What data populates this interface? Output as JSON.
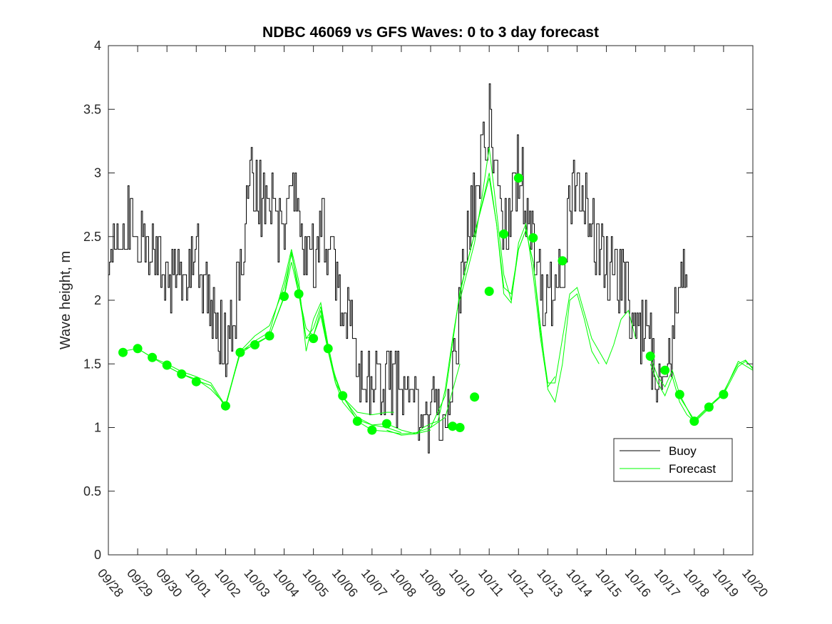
{
  "chart_data": {
    "type": "line",
    "title": "NDBC 46069 vs GFS Waves: 0 to 3 day forecast",
    "xlabel": "",
    "ylabel": "Wave height, m",
    "xlim": [
      0,
      22
    ],
    "ylim": [
      0,
      4
    ],
    "x_tick_labels": [
      "09/28",
      "09/29",
      "09/30",
      "10/01",
      "10/02",
      "10/03",
      "10/04",
      "10/05",
      "10/06",
      "10/07",
      "10/08",
      "10/09",
      "10/10",
      "10/11",
      "10/12",
      "10/13",
      "10/14",
      "10/15",
      "10/16",
      "10/17",
      "10/18",
      "10/19",
      "10/20"
    ],
    "y_ticks": [
      0,
      0.5,
      1,
      1.5,
      2,
      2.5,
      3,
      3.5,
      4
    ],
    "y_tick_labels": [
      "0",
      "0.5",
      "1",
      "1.5",
      "2",
      "2.5",
      "3",
      "3.5",
      "4"
    ],
    "legend": {
      "position": "lower-right",
      "entries": [
        "Buoy",
        "Forecast"
      ]
    },
    "colors": {
      "buoy": "#000000",
      "forecast": "#00ff00"
    },
    "buoy_anchors": [
      [
        0.0,
        2.1
      ],
      [
        0.1,
        2.6
      ],
      [
        0.25,
        2.45
      ],
      [
        0.5,
        2.6
      ],
      [
        0.75,
        2.6
      ],
      [
        1.0,
        2.4
      ],
      [
        1.25,
        2.5
      ],
      [
        1.5,
        2.4
      ],
      [
        1.75,
        2.3
      ],
      [
        2.0,
        2.2
      ],
      [
        2.25,
        2.15
      ],
      [
        2.5,
        2.2
      ],
      [
        2.75,
        2.3
      ],
      [
        3.0,
        2.3
      ],
      [
        3.25,
        2.2
      ],
      [
        3.5,
        2.05
      ],
      [
        3.75,
        1.7
      ],
      [
        4.0,
        1.65
      ],
      [
        4.25,
        1.8
      ],
      [
        4.5,
        2.2
      ],
      [
        4.75,
        3.0
      ],
      [
        5.0,
        2.9
      ],
      [
        5.25,
        2.8
      ],
      [
        5.5,
        2.95
      ],
      [
        5.75,
        2.6
      ],
      [
        6.0,
        2.45
      ],
      [
        6.25,
        2.9
      ],
      [
        6.5,
        2.6
      ],
      [
        6.75,
        2.3
      ],
      [
        7.0,
        2.35
      ],
      [
        7.25,
        2.55
      ],
      [
        7.5,
        2.45
      ],
      [
        7.75,
        2.2
      ],
      [
        8.0,
        2.0
      ],
      [
        8.25,
        1.75
      ],
      [
        8.5,
        1.55
      ],
      [
        8.75,
        1.4
      ],
      [
        9.0,
        1.45
      ],
      [
        9.25,
        1.35
      ],
      [
        9.5,
        1.4
      ],
      [
        9.75,
        1.3
      ],
      [
        10.0,
        1.25
      ],
      [
        10.25,
        1.2
      ],
      [
        10.5,
        1.15
      ],
      [
        10.75,
        1.1
      ],
      [
        11.0,
        1.12
      ],
      [
        11.25,
        1.1
      ],
      [
        11.5,
        1.2
      ],
      [
        11.75,
        1.4
      ],
      [
        12.0,
        1.95
      ],
      [
        12.25,
        2.6
      ],
      [
        12.5,
        2.75
      ],
      [
        12.75,
        3.05
      ],
      [
        13.0,
        3.45
      ],
      [
        13.25,
        2.8
      ],
      [
        13.5,
        2.6
      ],
      [
        13.75,
        2.8
      ],
      [
        14.0,
        3.1
      ],
      [
        14.25,
        2.7
      ],
      [
        14.5,
        2.4
      ],
      [
        14.75,
        2.05
      ],
      [
        15.0,
        1.95
      ],
      [
        15.25,
        2.0
      ],
      [
        15.5,
        2.3
      ],
      [
        15.75,
        2.85
      ],
      [
        16.0,
        2.95
      ],
      [
        16.25,
        2.75
      ],
      [
        16.5,
        2.6
      ],
      [
        16.75,
        2.3
      ],
      [
        17.0,
        2.25
      ],
      [
        17.25,
        2.2
      ],
      [
        17.5,
        2.25
      ],
      [
        17.75,
        2.0
      ],
      [
        18.0,
        1.9
      ],
      [
        18.25,
        1.75
      ],
      [
        18.5,
        1.6
      ],
      [
        18.75,
        1.5
      ],
      [
        19.0,
        1.5
      ],
      [
        19.25,
        1.7
      ],
      [
        19.5,
        2.3
      ],
      [
        19.75,
        2.3
      ]
    ],
    "buoy_noise_amplitude": 0.3,
    "forecast_runs": [
      [
        [
          0.5,
          1.6
        ],
        [
          1.0,
          1.62
        ],
        [
          1.5,
          1.55
        ],
        [
          2.0,
          1.48
        ],
        [
          2.5,
          1.42
        ],
        [
          3.0,
          1.38
        ],
        [
          3.5,
          1.3
        ],
        [
          4.0,
          1.18
        ],
        [
          4.5,
          1.58
        ],
        [
          5.0,
          1.66
        ],
        [
          5.5,
          1.72
        ],
        [
          6.0,
          2.02
        ],
        [
          6.25,
          2.3
        ],
        [
          6.5,
          2.05
        ],
        [
          6.75,
          1.78
        ],
        [
          7.0,
          1.72
        ],
        [
          7.25,
          1.88
        ],
        [
          7.5,
          1.6
        ],
        [
          7.75,
          1.4
        ],
        [
          8.0,
          1.24
        ],
        [
          8.5,
          1.08
        ],
        [
          9.0,
          1.02
        ],
        [
          9.5,
          1.0
        ],
        [
          10.0,
          0.96
        ]
      ],
      [
        [
          1.0,
          1.62
        ],
        [
          1.5,
          1.55
        ],
        [
          2.0,
          1.5
        ],
        [
          2.5,
          1.44
        ],
        [
          3.0,
          1.4
        ],
        [
          3.5,
          1.35
        ],
        [
          4.0,
          1.17
        ],
        [
          4.5,
          1.6
        ],
        [
          5.0,
          1.72
        ],
        [
          5.5,
          1.8
        ],
        [
          6.0,
          2.1
        ],
        [
          6.25,
          2.36
        ],
        [
          6.5,
          2.1
        ],
        [
          6.75,
          1.7
        ],
        [
          7.0,
          1.78
        ],
        [
          7.25,
          1.95
        ],
        [
          7.5,
          1.62
        ],
        [
          7.75,
          1.35
        ],
        [
          8.0,
          1.2
        ],
        [
          8.5,
          1.06
        ],
        [
          9.0,
          1.02
        ],
        [
          9.5,
          1.03
        ],
        [
          10.0,
          0.98
        ],
        [
          10.5,
          0.95
        ],
        [
          11.0,
          0.98
        ]
      ],
      [
        [
          2.0,
          1.48
        ],
        [
          2.5,
          1.42
        ],
        [
          3.0,
          1.37
        ],
        [
          3.5,
          1.33
        ],
        [
          4.0,
          1.16
        ],
        [
          4.5,
          1.59
        ],
        [
          5.0,
          1.68
        ],
        [
          5.5,
          1.75
        ],
        [
          6.0,
          2.15
        ],
        [
          6.25,
          2.4
        ],
        [
          6.5,
          2.15
        ],
        [
          6.75,
          1.6
        ],
        [
          7.0,
          1.85
        ],
        [
          7.25,
          1.98
        ],
        [
          7.5,
          1.65
        ],
        [
          7.75,
          1.38
        ],
        [
          8.0,
          1.24
        ],
        [
          8.5,
          1.12
        ],
        [
          9.0,
          1.1
        ],
        [
          9.5,
          1.12
        ],
        [
          9.75,
          1.12
        ]
      ],
      [
        [
          4.0,
          1.17
        ],
        [
          4.5,
          1.6
        ],
        [
          5.0,
          1.65
        ],
        [
          5.5,
          1.72
        ],
        [
          6.0,
          2.03
        ],
        [
          6.25,
          2.38
        ],
        [
          6.5,
          2.05
        ],
        [
          6.75,
          1.7
        ],
        [
          7.0,
          1.72
        ],
        [
          7.25,
          1.92
        ],
        [
          7.5,
          1.6
        ],
        [
          7.75,
          1.35
        ],
        [
          8.0,
          1.25
        ],
        [
          8.5,
          1.05
        ],
        [
          9.0,
          0.98
        ],
        [
          9.5,
          0.97
        ],
        [
          10.0,
          0.95
        ],
        [
          10.5,
          0.96
        ],
        [
          11.0,
          1.0
        ],
        [
          11.5,
          1.08
        ],
        [
          12.0,
          1.5
        ]
      ],
      [
        [
          9.5,
          0.98
        ],
        [
          10.0,
          0.94
        ],
        [
          10.5,
          0.95
        ],
        [
          10.75,
          1.0
        ],
        [
          11.0,
          1.03
        ],
        [
          11.25,
          1.05
        ],
        [
          11.5,
          1.3
        ],
        [
          11.75,
          1.7
        ],
        [
          12.0,
          2.05
        ],
        [
          12.25,
          2.3
        ],
        [
          12.5,
          2.52
        ],
        [
          12.75,
          2.75
        ],
        [
          13.0,
          3.0
        ],
        [
          13.25,
          2.6
        ],
        [
          13.5,
          2.1
        ],
        [
          13.75,
          2.05
        ],
        [
          14.0,
          2.4
        ],
        [
          14.25,
          2.55
        ],
        [
          14.5,
          2.3
        ],
        [
          14.75,
          1.8
        ],
        [
          15.0,
          1.3
        ],
        [
          15.25,
          1.2
        ],
        [
          15.5,
          1.5
        ],
        [
          15.75,
          2.0
        ],
        [
          16.0,
          2.05
        ],
        [
          16.25,
          1.85
        ],
        [
          16.5,
          1.6
        ],
        [
          16.75,
          1.5
        ]
      ],
      [
        [
          11.0,
          1.0
        ],
        [
          11.5,
          1.25
        ],
        [
          12.0,
          2.07
        ],
        [
          12.5,
          2.52
        ],
        [
          13.0,
          2.96
        ],
        [
          13.25,
          2.6
        ],
        [
          13.5,
          2.05
        ],
        [
          13.75,
          1.98
        ],
        [
          14.0,
          2.45
        ],
        [
          14.25,
          2.6
        ],
        [
          14.5,
          2.2
        ],
        [
          14.75,
          1.7
        ],
        [
          15.0,
          1.32
        ],
        [
          15.25,
          1.4
        ]
      ],
      [
        [
          12.0,
          2.0
        ],
        [
          12.5,
          2.45
        ],
        [
          12.75,
          2.8
        ],
        [
          13.0,
          3.2
        ],
        [
          13.25,
          2.7
        ],
        [
          13.5,
          2.2
        ],
        [
          13.75,
          2.0
        ],
        [
          14.0,
          2.4
        ],
        [
          14.25,
          2.55
        ],
        [
          14.5,
          2.3
        ],
        [
          14.75,
          1.75
        ],
        [
          15.0,
          1.35
        ],
        [
          15.25,
          1.35
        ],
        [
          15.5,
          1.7
        ],
        [
          15.75,
          2.05
        ],
        [
          16.0,
          2.1
        ],
        [
          16.25,
          1.9
        ],
        [
          16.5,
          1.7
        ],
        [
          16.75,
          1.6
        ],
        [
          17.0,
          1.5
        ],
        [
          17.25,
          1.65
        ],
        [
          17.5,
          1.85
        ],
        [
          17.75,
          1.92
        ],
        [
          18.0,
          1.7
        ]
      ],
      [
        [
          18.5,
          1.5
        ],
        [
          18.75,
          1.35
        ],
        [
          19.0,
          1.25
        ],
        [
          19.25,
          1.4
        ],
        [
          19.5,
          1.2
        ],
        [
          19.75,
          1.1
        ],
        [
          20.0,
          1.05
        ],
        [
          20.5,
          1.16
        ],
        [
          21.0,
          1.26
        ],
        [
          21.5,
          1.48
        ],
        [
          21.75,
          1.52
        ],
        [
          22.0,
          1.47
        ]
      ],
      [
        [
          18.5,
          1.56
        ],
        [
          18.75,
          1.4
        ],
        [
          19.0,
          1.32
        ],
        [
          19.25,
          1.45
        ],
        [
          19.5,
          1.26
        ],
        [
          20.0,
          1.04
        ],
        [
          20.5,
          1.15
        ],
        [
          21.0,
          1.28
        ],
        [
          21.5,
          1.5
        ],
        [
          21.75,
          1.53
        ],
        [
          22.0,
          1.46
        ]
      ],
      [
        [
          19.5,
          1.24
        ],
        [
          20.0,
          1.06
        ],
        [
          20.5,
          1.17
        ],
        [
          21.0,
          1.27
        ],
        [
          21.5,
          1.52
        ],
        [
          22.0,
          1.45
        ]
      ]
    ],
    "forecast_points": [
      [
        0.5,
        1.59
      ],
      [
        1.0,
        1.62
      ],
      [
        1.5,
        1.55
      ],
      [
        2.0,
        1.49
      ],
      [
        2.5,
        1.42
      ],
      [
        3.0,
        1.36
      ],
      [
        4.0,
        1.17
      ],
      [
        4.5,
        1.59
      ],
      [
        5.0,
        1.65
      ],
      [
        5.5,
        1.72
      ],
      [
        6.0,
        2.03
      ],
      [
        6.5,
        2.05
      ],
      [
        7.0,
        1.7
      ],
      [
        7.5,
        1.62
      ],
      [
        8.0,
        1.25
      ],
      [
        8.5,
        1.05
      ],
      [
        9.0,
        0.98
      ],
      [
        9.5,
        1.03
      ],
      [
        11.75,
        1.01
      ],
      [
        12.0,
        1.0
      ],
      [
        12.5,
        1.24
      ],
      [
        13.0,
        2.07
      ],
      [
        13.5,
        2.52
      ],
      [
        14.0,
        2.96
      ],
      [
        14.5,
        2.49
      ],
      [
        15.5,
        2.31
      ],
      [
        18.5,
        1.56
      ],
      [
        19.0,
        1.45
      ],
      [
        19.5,
        1.26
      ],
      [
        20.0,
        1.05
      ],
      [
        20.5,
        1.16
      ],
      [
        21.0,
        1.26
      ]
    ]
  }
}
